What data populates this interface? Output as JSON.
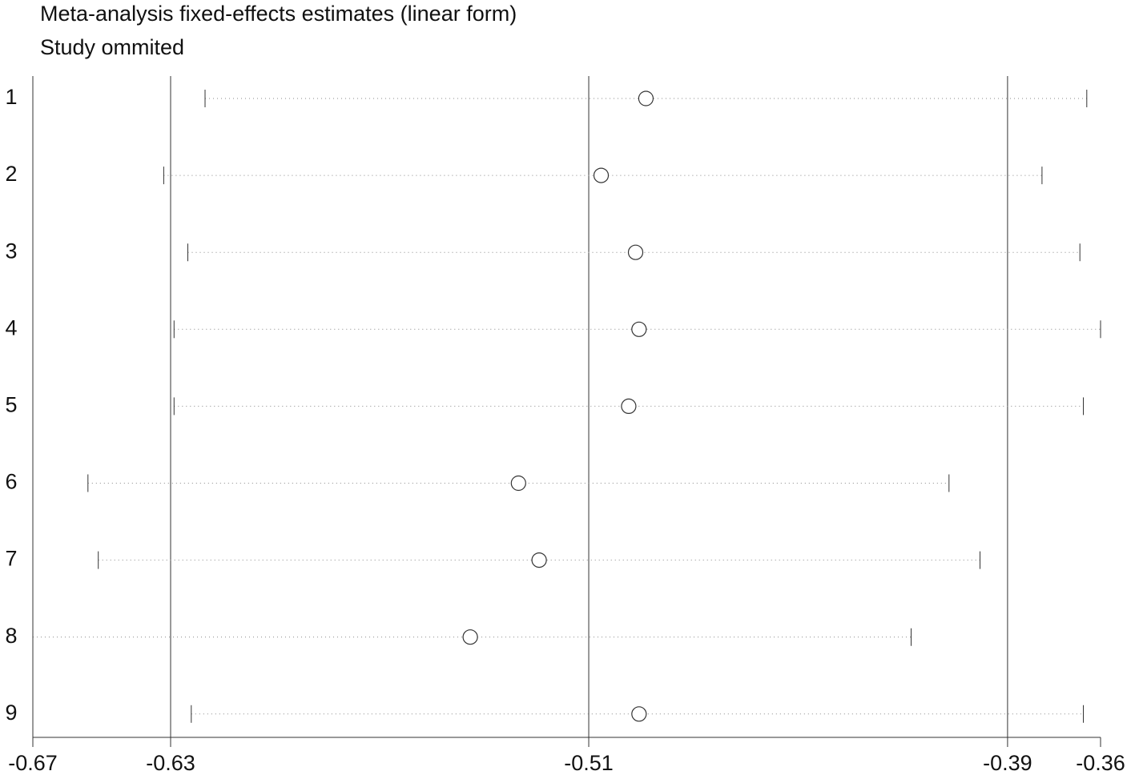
{
  "chart_data": {
    "type": "forest",
    "title": "Meta-analysis fixed-effects estimates (linear form)",
    "subtitle": "Study ommited",
    "categories": [
      "1",
      "2",
      "3",
      "4",
      "5",
      "6",
      "7",
      "8",
      "9"
    ],
    "values": [
      -0.492,
      -0.505,
      -0.495,
      -0.494,
      -0.497,
      -0.529,
      -0.523,
      -0.543,
      -0.494
    ],
    "lower": [
      -0.62,
      -0.632,
      -0.625,
      -0.629,
      -0.629,
      -0.654,
      -0.651,
      -0.67,
      -0.624
    ],
    "upper": [
      -0.364,
      -0.377,
      -0.366,
      -0.36,
      -0.365,
      -0.404,
      -0.395,
      -0.415,
      -0.365
    ],
    "xlim": [
      -0.67,
      -0.36
    ],
    "xticks": [
      -0.67,
      {
        "value": -0.63,
        "label": "-0.63"
      },
      {
        "value": -0.5086,
        "label": "-0.51"
      },
      {
        "value": -0.387,
        "label": "-0.39"
      },
      -0.36
    ],
    "grid": true
  }
}
